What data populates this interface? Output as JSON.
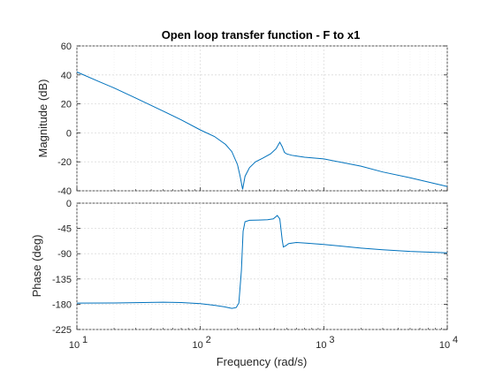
{
  "chart_data": {
    "type": "line",
    "title": "Open loop transfer function - F to x1",
    "xlabel": "Frequency  (rad/s)",
    "x_scale": "log",
    "xlim": [
      10,
      10000
    ],
    "x_ticks": [
      10,
      100,
      1000,
      10000
    ],
    "x_tick_labels": [
      "10",
      "2",
      "3",
      "4"
    ],
    "grid": true,
    "line_color": "#0072BD",
    "panels": [
      {
        "name": "magnitude",
        "ylabel": "Magnitude (dB)",
        "ylim": [
          -40,
          60
        ],
        "y_ticks": [
          -40,
          -20,
          0,
          20,
          40,
          60
        ],
        "y_tick_labels": [
          "-40",
          "-20",
          "0",
          "20",
          "40",
          "60"
        ],
        "series": [
          {
            "x": [
              10,
              15,
              20,
              30,
              50,
              70,
              100,
              130,
              160,
              180,
              200,
              210,
              220,
              230,
              250,
              280,
              320,
              370,
              410,
              440,
              460,
              480,
              500,
              550,
              600,
              700,
              1000,
              2000,
              3000,
              5000,
              10000
            ],
            "y": [
              42,
              35.5,
              31,
              24,
              15,
              9,
              2,
              -2.5,
              -8,
              -13,
              -22,
              -30,
              -39,
              -30,
              -24,
              -20,
              -17.5,
              -14.5,
              -11,
              -6.5,
              -9.5,
              -13.5,
              -14.5,
              -15.5,
              -16,
              -16.8,
              -18,
              -23,
              -27,
              -31,
              -37
            ]
          }
        ]
      },
      {
        "name": "phase",
        "ylabel": "Phase (deg)",
        "ylim": [
          -225,
          0
        ],
        "y_ticks": [
          -225,
          -180,
          -135,
          -90,
          -45,
          0
        ],
        "y_tick_labels": [
          "-225",
          "-180",
          "-135",
          "-90",
          "-45",
          "0"
        ],
        "series": [
          {
            "x": [
              10,
              20,
              30,
              50,
              70,
              100,
              130,
              160,
              180,
              195,
              205,
              215,
              222,
              230,
              250,
              300,
              350,
              390,
              420,
              440,
              460,
              470,
              490,
              520,
              600,
              700,
              1000,
              2000,
              3000,
              5000,
              10000
            ],
            "y": [
              -178,
              -177.7,
              -177.2,
              -176.5,
              -177,
              -179,
              -182,
              -185,
              -187.5,
              -186,
              -178,
              -120,
              -50,
              -33,
              -30.5,
              -30,
              -29.5,
              -28,
              -22,
              -28,
              -65,
              -78,
              -76,
              -72,
              -70,
              -71,
              -73.5,
              -80,
              -83,
              -86,
              -88.5
            ]
          }
        ]
      }
    ]
  }
}
